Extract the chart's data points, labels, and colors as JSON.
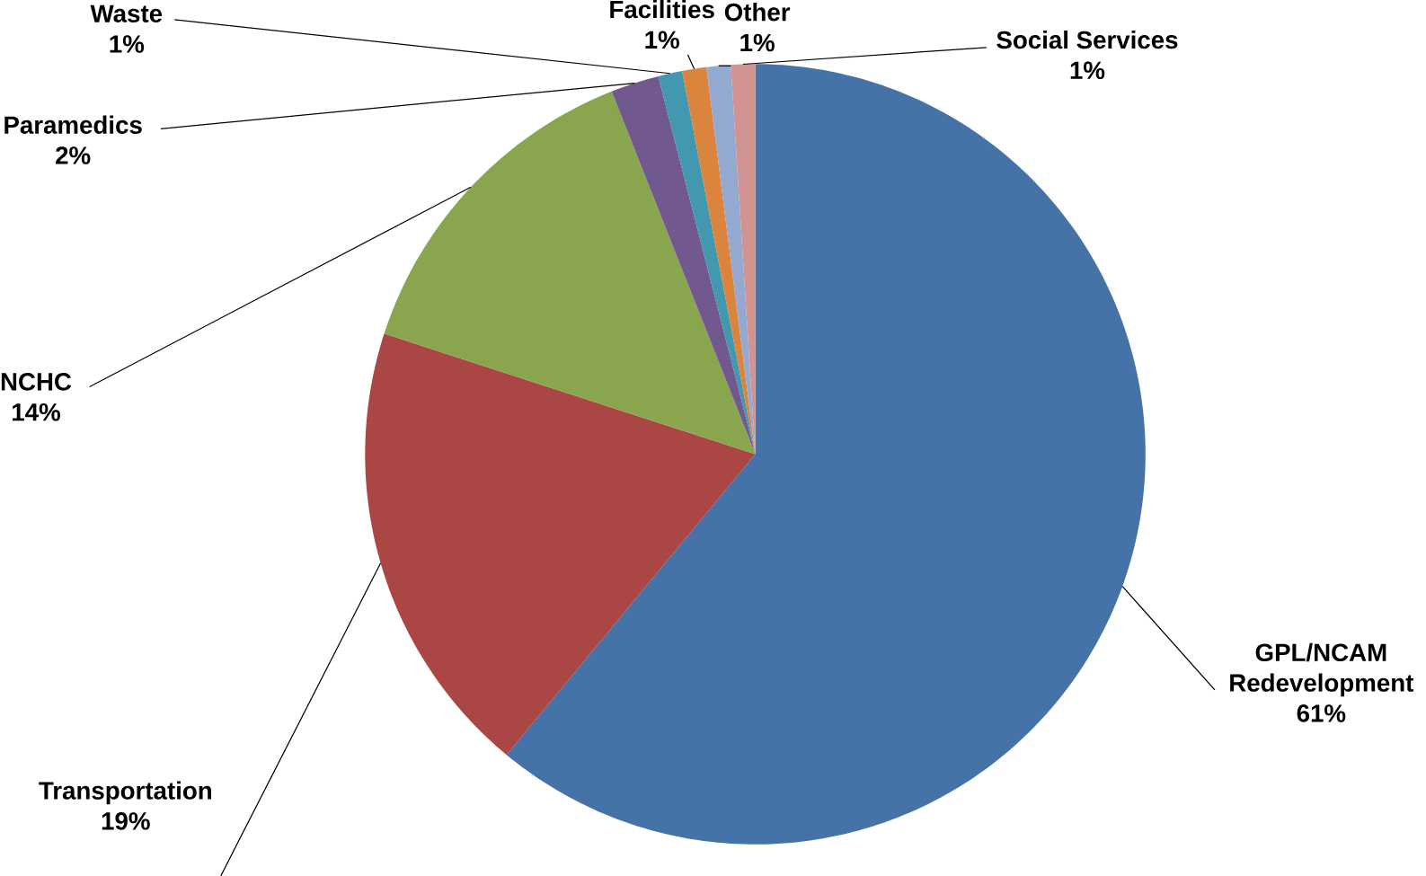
{
  "chart_data": {
    "type": "pie",
    "categories": [
      "GPL/NCAM Redevelopment",
      "Transportation",
      "NCHC",
      "Paramedics",
      "Waste",
      "Facilities",
      "Other",
      "Social Services"
    ],
    "values": [
      61,
      19,
      14,
      2,
      1,
      1,
      1,
      1
    ],
    "value_labels": [
      "61%",
      "19%",
      "14%",
      "2%",
      "1%",
      "1%",
      "1%",
      "1%"
    ],
    "colors": [
      "#4572a7",
      "#aa4643",
      "#89a54e",
      "#71588f",
      "#4198af",
      "#db843d",
      "#93a9cf",
      "#d19392"
    ]
  }
}
